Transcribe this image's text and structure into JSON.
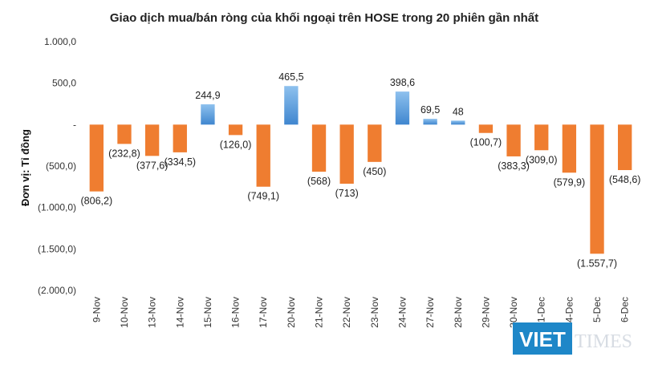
{
  "chart_data": {
    "type": "bar",
    "title": "Giao dịch mua/bán ròng của khối ngoại trên HOSE trong 20 phiên gần nhất",
    "ylabel": "Đơn vị: Tỉ đồng",
    "xlabel": "",
    "ylim": [
      -2000,
      1000
    ],
    "yticks": [
      1000,
      500,
      0,
      -500,
      -1000,
      -1500,
      -2000
    ],
    "ytick_labels": [
      "1.000,0",
      "500,0",
      "-",
      "(500,0)",
      "(1.000,0)",
      "(1.500,0)",
      "(2.000,0)"
    ],
    "grid": false,
    "legend": "none",
    "categories": [
      "9-Nov",
      "10-Nov",
      "13-Nov",
      "14-Nov",
      "15-Nov",
      "16-Nov",
      "17-Nov",
      "20-Nov",
      "21-Nov",
      "22-Nov",
      "23-Nov",
      "24-Nov",
      "27-Nov",
      "28-Nov",
      "29-Nov",
      "30-Nov",
      "1-Dec",
      "4-Dec",
      "5-Dec",
      "6-Dec"
    ],
    "values": [
      -806.2,
      -232.8,
      -377.6,
      -334.5,
      244.9,
      -126.0,
      -749.1,
      465.5,
      -568,
      -713,
      -450,
      398.6,
      69.5,
      48,
      -100.7,
      -383.3,
      -309.0,
      -579.9,
      -1557.7,
      -548.6
    ],
    "data_labels": [
      "(806,2)",
      "(232,8)",
      "(377,6)",
      "(334,5)",
      "244,9",
      "(126,0)",
      "(749,1)",
      "465,5",
      "(568)",
      "(713)",
      "(450)",
      "398,6",
      "69,5",
      "48",
      "(100,7)",
      "(383,3)",
      "(309,0)",
      "(579,9)",
      "(1.557,7)",
      "(548,6)"
    ],
    "colors": {
      "positive": "#4a8fd4",
      "positive_light": "#8ec1ee",
      "negative": "#ef7d30"
    }
  },
  "watermark": {
    "part1": "VIET",
    "part2": "TIMES",
    "color": "#1e87c8"
  }
}
